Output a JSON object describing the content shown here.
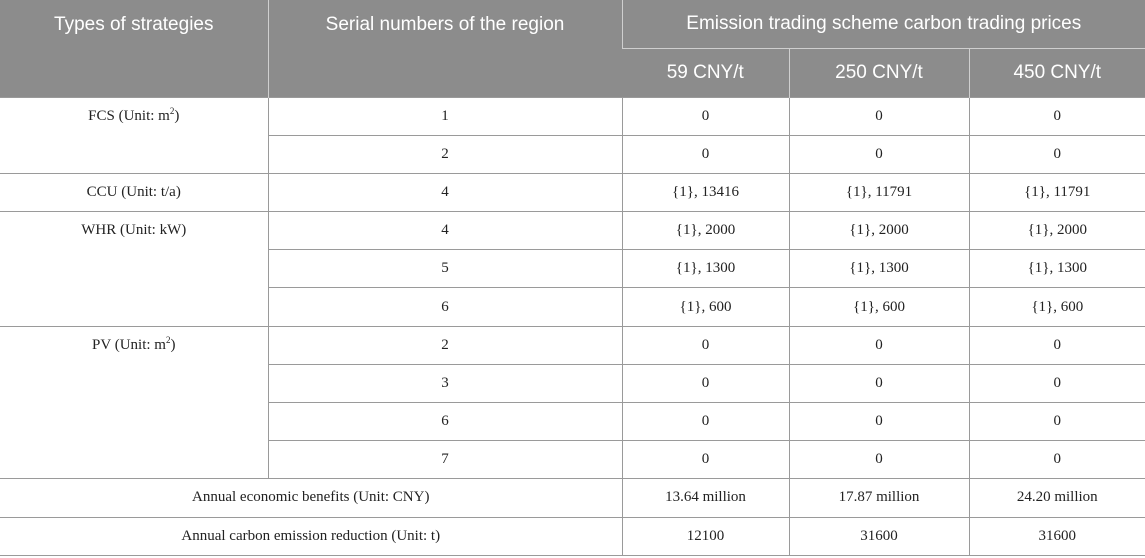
{
  "header": {
    "col1": "Types of strategies",
    "col2": "Serial numbers of the region",
    "group": "Emission trading scheme carbon trading prices",
    "prices": [
      "59 CNY/t",
      "250 CNY/t",
      "450 CNY/t"
    ]
  },
  "groups": {
    "fcs": {
      "label": "FCS (Unit: m",
      "sup": "2",
      "close": ")"
    },
    "ccu": {
      "label": "CCU (Unit: t/a)"
    },
    "whr": {
      "label": "WHR (Unit: kW)"
    },
    "pv": {
      "label": "PV (Unit: m",
      "sup": "2",
      "close": ")"
    }
  },
  "rows": [
    {
      "region": "1",
      "v": [
        "0",
        "0",
        "0"
      ]
    },
    {
      "region": "2",
      "v": [
        "0",
        "0",
        "0"
      ]
    },
    {
      "region": "4",
      "v": [
        "{1}, 13416",
        "{1}, 11791",
        "{1}, 11791"
      ]
    },
    {
      "region": "4",
      "v": [
        "{1}, 2000",
        "{1}, 2000",
        "{1}, 2000"
      ]
    },
    {
      "region": "5",
      "v": [
        "{1}, 1300",
        "{1}, 1300",
        "{1}, 1300"
      ]
    },
    {
      "region": "6",
      "v": [
        "{1}, 600",
        "{1}, 600",
        "{1}, 600"
      ]
    },
    {
      "region": "2",
      "v": [
        "0",
        "0",
        "0"
      ]
    },
    {
      "region": "3",
      "v": [
        "0",
        "0",
        "0"
      ]
    },
    {
      "region": "6",
      "v": [
        "0",
        "0",
        "0"
      ]
    },
    {
      "region": "7",
      "v": [
        "0",
        "0",
        "0"
      ]
    }
  ],
  "summary": [
    {
      "label": "Annual economic benefits (Unit: CNY)",
      "v": [
        "13.64 million",
        "17.87 million",
        "24.20 million"
      ]
    },
    {
      "label": "Annual carbon emission reduction (Unit: t)",
      "v": [
        "12100",
        "31600",
        "31600"
      ]
    }
  ]
}
